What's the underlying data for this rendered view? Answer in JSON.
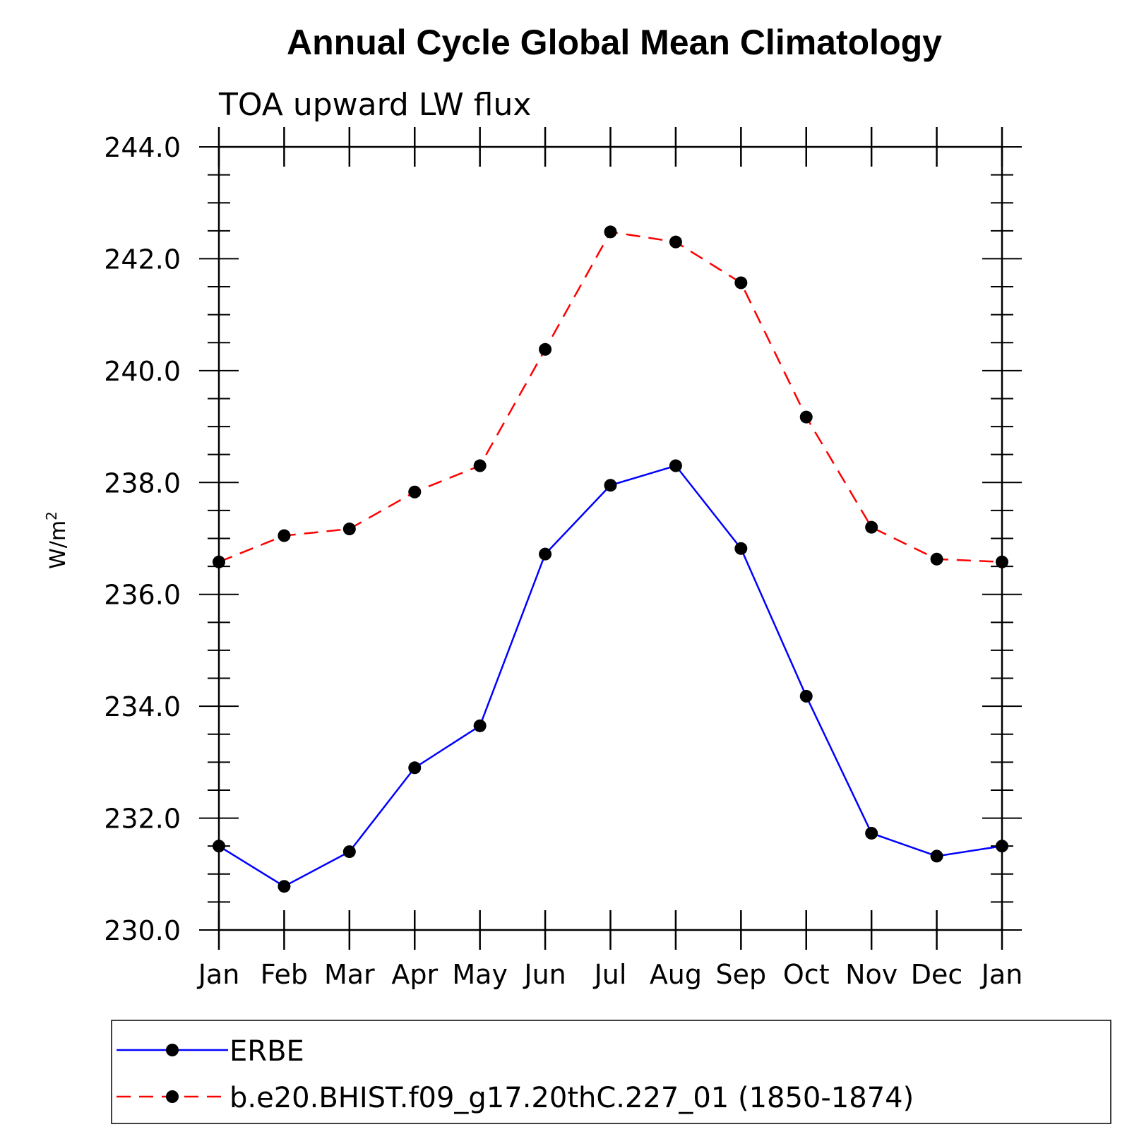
{
  "chart_data": {
    "type": "line",
    "title": "Annual Cycle Global Mean Climatology",
    "subtitle": "TOA upward LW flux",
    "xlabel": "",
    "ylabel": "W/m",
    "ylabel_sup": "2",
    "categories": [
      "Jan",
      "Feb",
      "Mar",
      "Apr",
      "May",
      "Jun",
      "Jul",
      "Aug",
      "Sep",
      "Oct",
      "Nov",
      "Dec",
      "Jan"
    ],
    "ylim": [
      230,
      244
    ],
    "yticks": [
      "230.0",
      "232.0",
      "234.0",
      "236.0",
      "238.0",
      "240.0",
      "242.0",
      "244.0"
    ],
    "grid": false,
    "legend_position": "bottom",
    "series": [
      {
        "name": "ERBE",
        "color": "#0000ff",
        "line_style": "solid",
        "values": [
          231.5,
          230.78,
          231.4,
          232.9,
          233.65,
          236.72,
          237.95,
          238.3,
          236.82,
          234.18,
          231.73,
          231.32,
          231.5
        ]
      },
      {
        "name": "b.e20.BHIST.f09_g17.20thC.227_01 (1850-1874)",
        "color": "#ff0000",
        "line_style": "dashed",
        "values": [
          236.58,
          237.05,
          237.17,
          237.83,
          238.3,
          240.38,
          242.48,
          242.3,
          241.57,
          239.17,
          237.2,
          236.63,
          236.58
        ]
      }
    ]
  }
}
